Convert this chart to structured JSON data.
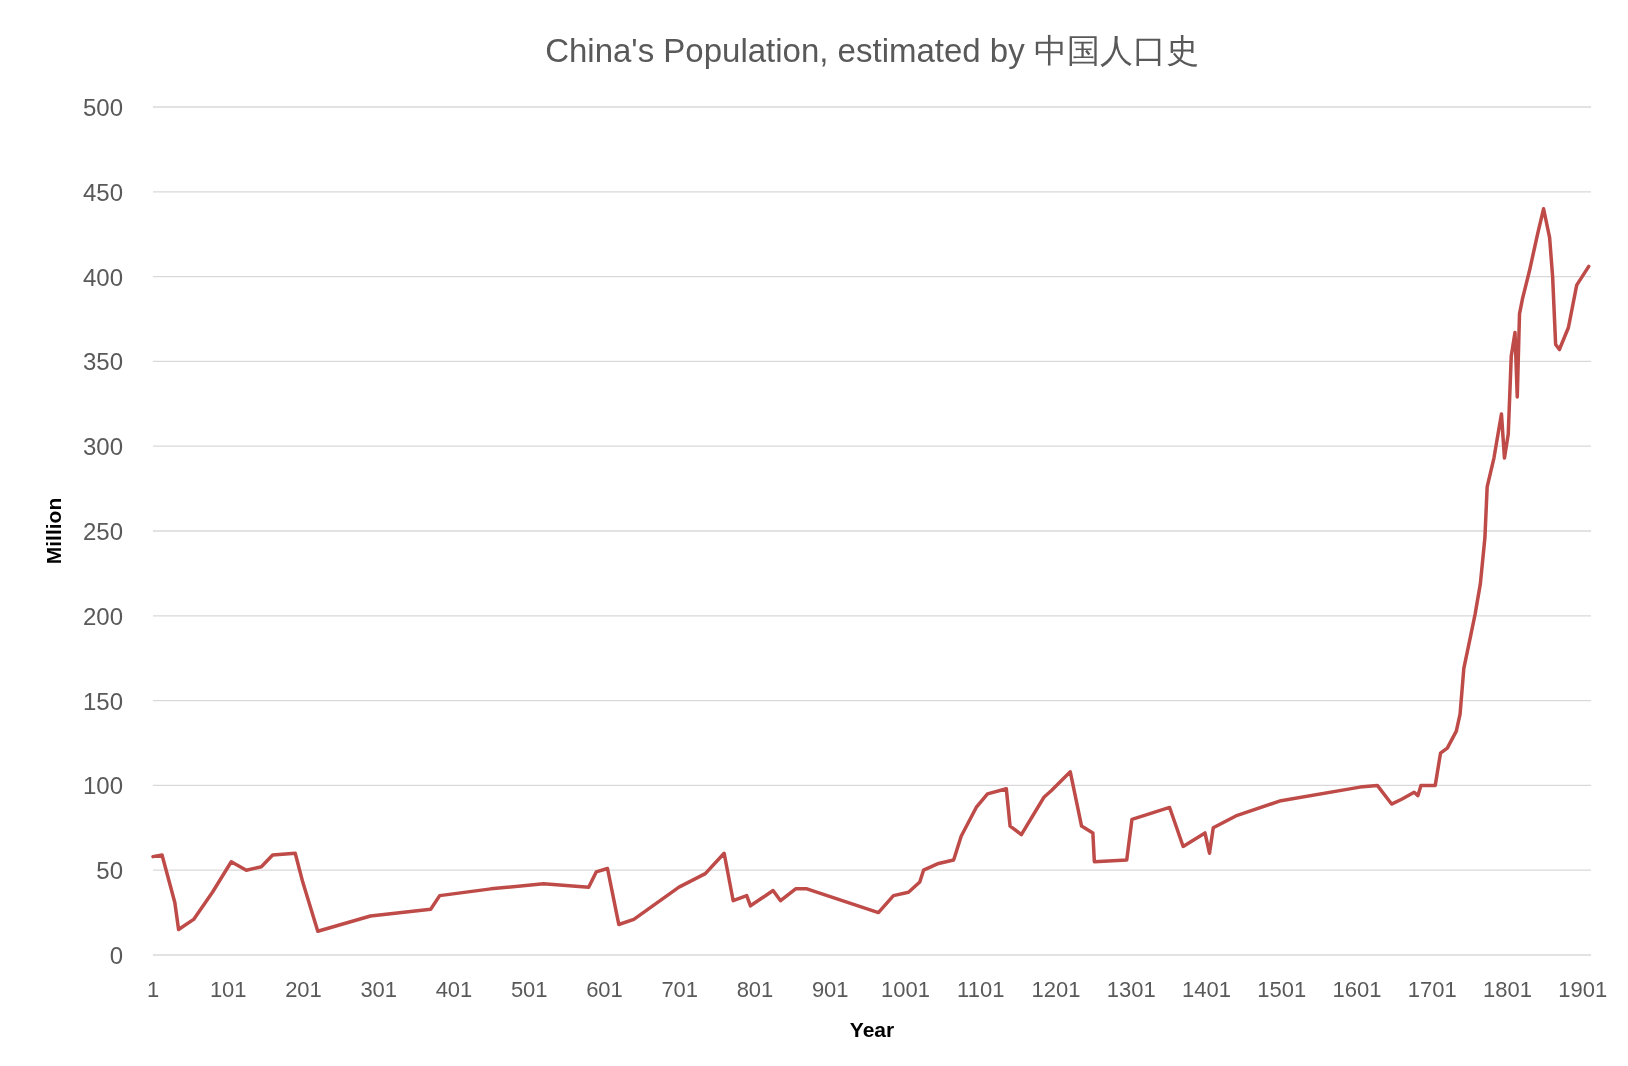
{
  "chart_data": {
    "type": "line",
    "title": "China's Population, estimated by 中国人口史",
    "xlabel": "Year",
    "ylabel": "Million",
    "xlim": [
      1,
      1912
    ],
    "ylim": [
      0,
      500
    ],
    "xticks": [
      1,
      101,
      201,
      301,
      401,
      501,
      601,
      701,
      801,
      901,
      1001,
      1101,
      1201,
      1301,
      1401,
      1501,
      1601,
      1701,
      1801,
      1901
    ],
    "yticks": [
      0,
      50,
      100,
      150,
      200,
      250,
      300,
      350,
      400,
      450,
      500
    ],
    "grid": "y",
    "series": [
      {
        "color": "#be4b48",
        "x": [
          1,
          13,
          30,
          35,
          55,
          80,
          105,
          125,
          145,
          160,
          190,
          200,
          220,
          290,
          370,
          382,
          450,
          520,
          580,
          590,
          605,
          620,
          640,
          700,
          735,
          760,
          772,
          790,
          795,
          825,
          835,
          855,
          870,
          965,
          985,
          1005,
          1020,
          1025,
          1045,
          1065,
          1075,
          1095,
          1110,
          1135,
          1140,
          1155,
          1185,
          1195,
          1220,
          1235,
          1250,
          1252,
          1295,
          1302,
          1352,
          1370,
          1399,
          1405,
          1410,
          1440,
          1500,
          1605,
          1628,
          1647,
          1661,
          1677,
          1682,
          1686,
          1705,
          1712,
          1721,
          1733,
          1738,
          1743,
          1751,
          1758,
          1765,
          1771,
          1774,
          1783,
          1793,
          1797,
          1802,
          1806,
          1811,
          1814,
          1817,
          1821,
          1830,
          1841,
          1849,
          1857,
          1861,
          1865,
          1870,
          1882,
          1893,
          1909
        ],
        "values": [
          58,
          59,
          31,
          15,
          21,
          37,
          55,
          50,
          52,
          59,
          60,
          43,
          14,
          23,
          27,
          35,
          39,
          42,
          40,
          49,
          51,
          18,
          21,
          40,
          48,
          60,
          32,
          35,
          29,
          38,
          32,
          39,
          39,
          25,
          35,
          37,
          43,
          50,
          54,
          56,
          70,
          87,
          95,
          98,
          76,
          71,
          93,
          97,
          108,
          76,
          72,
          55,
          56,
          80,
          87,
          64,
          72,
          60,
          75,
          82,
          91,
          99,
          100,
          89,
          92,
          96,
          94,
          100,
          100,
          119,
          122,
          132,
          142,
          169,
          186,
          201,
          219,
          246,
          276,
          293,
          319,
          293,
          307,
          353,
          367,
          329,
          378,
          387,
          403,
          425,
          440,
          423,
          400,
          360,
          357,
          370,
          395,
          406
        ]
      }
    ]
  }
}
